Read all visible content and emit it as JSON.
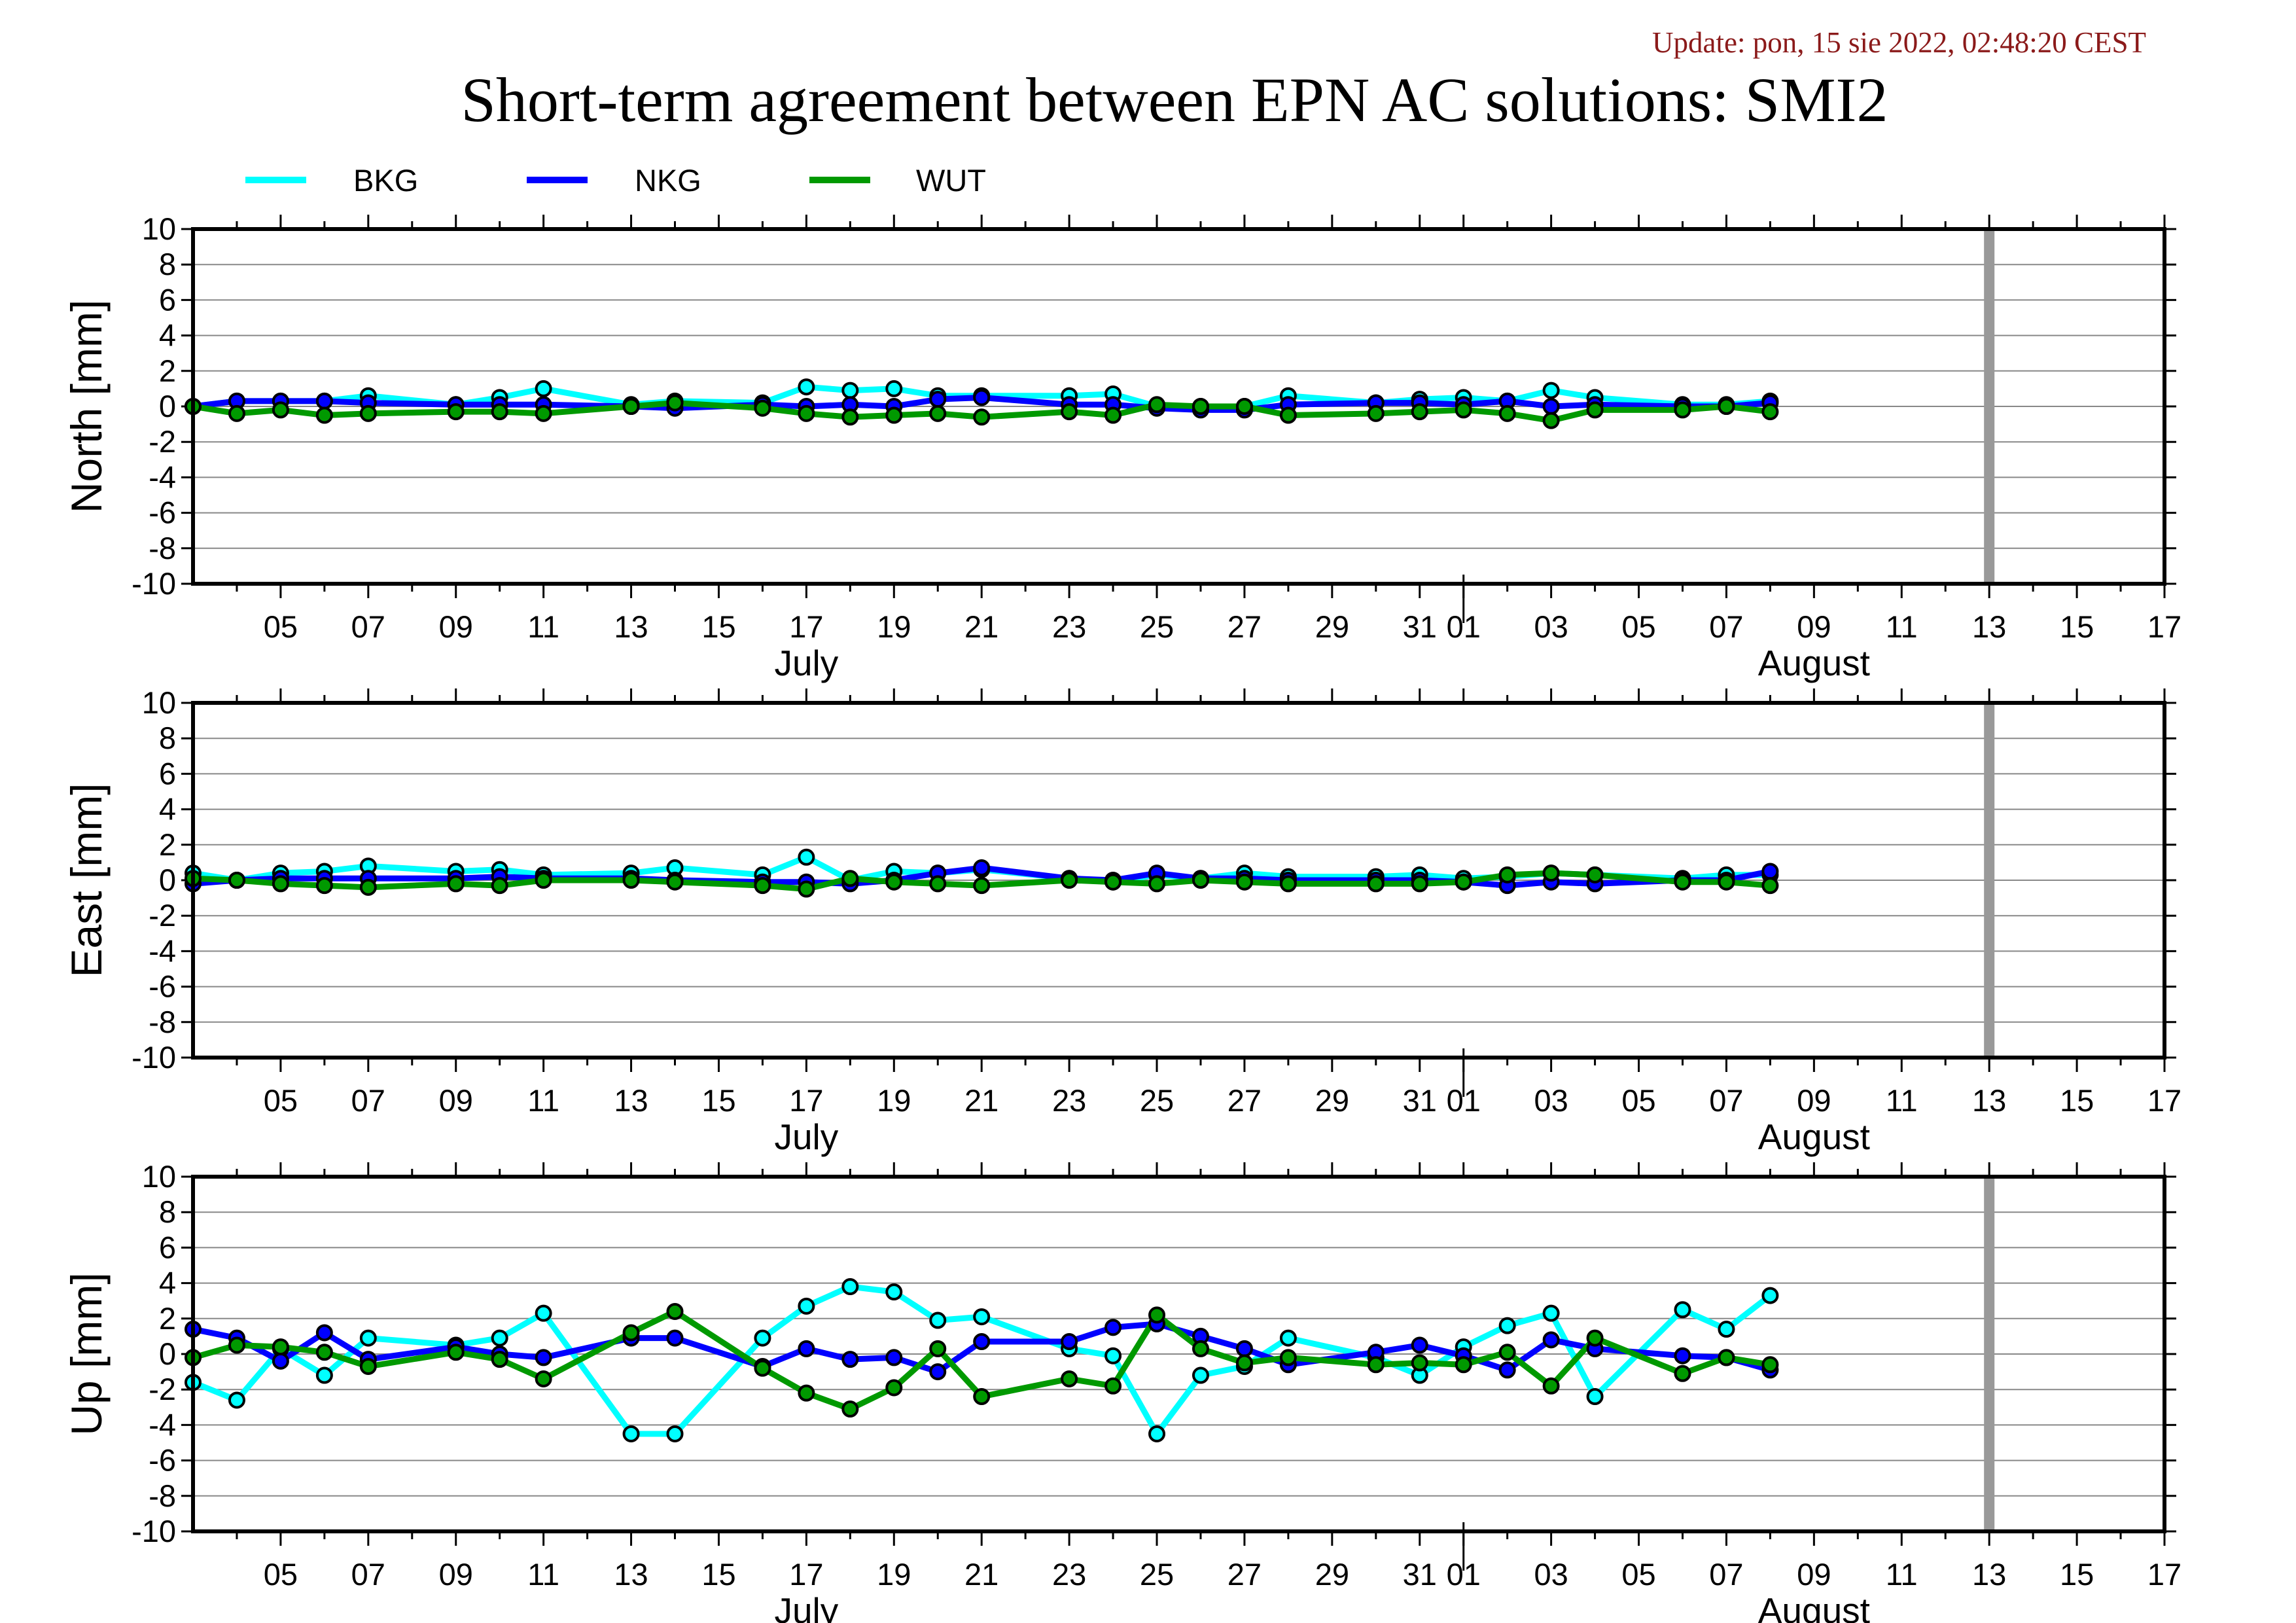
{
  "update_text": "Update: pon, 15 sie 2022, 02:48:20 CEST",
  "title": "Short-term agreement between EPN AC solutions: SMI2",
  "legend": [
    {
      "name": "BKG",
      "color": "#00ffff"
    },
    {
      "name": "NKG",
      "color": "#0000ff"
    },
    {
      "name": "WUT",
      "color": "#009900"
    }
  ],
  "colors": {
    "grid": "#888888",
    "frame": "#000000",
    "marker_edge": "#000000",
    "today_marker": "#999999"
  },
  "chart_data": [
    {
      "type": "line",
      "ylabel": "North [mm]",
      "ylim": [
        -10,
        10
      ],
      "yticks": [
        -10,
        -8,
        -6,
        -4,
        -2,
        0,
        2,
        4,
        6,
        8,
        10
      ],
      "xlim": [
        "2022-07-03",
        "2022-08-17"
      ],
      "xtick_labels": [
        "05",
        "07",
        "09",
        "11",
        "13",
        "15",
        "17",
        "19",
        "21",
        "23",
        "25",
        "27",
        "29",
        "31",
        "01",
        "03",
        "05",
        "07",
        "09",
        "11",
        "13",
        "15",
        "17"
      ],
      "month_labels": [
        "July",
        "August"
      ],
      "today_marker": "2022-08-13",
      "grid": "horizontal",
      "series": [
        {
          "name": "BKG",
          "x": [
            "2022-07-03",
            "2022-07-04",
            "2022-07-05",
            "2022-07-06",
            "2022-07-07",
            "2022-07-09",
            "2022-07-10",
            "2022-07-11",
            "2022-07-13",
            "2022-07-14",
            "2022-07-16",
            "2022-07-17",
            "2022-07-18",
            "2022-07-19",
            "2022-07-20",
            "2022-07-21",
            "2022-07-23",
            "2022-07-24",
            "2022-07-25",
            "2022-07-26",
            "2022-07-27",
            "2022-07-28",
            "2022-07-30",
            "2022-07-31",
            "2022-08-01",
            "2022-08-02",
            "2022-08-03",
            "2022-08-04",
            "2022-08-06",
            "2022-08-07",
            "2022-08-08"
          ],
          "y": [
            0.0,
            0.3,
            0.3,
            0.3,
            0.6,
            0.1,
            0.5,
            1.0,
            0.1,
            0.3,
            0.2,
            1.1,
            0.9,
            1.0,
            0.6,
            0.6,
            0.6,
            0.7,
            0.0,
            0.0,
            0.0,
            0.6,
            0.2,
            0.4,
            0.5,
            0.3,
            0.9,
            0.5,
            0.1,
            0.1,
            0.3
          ]
        },
        {
          "name": "NKG",
          "x": [
            "2022-07-03",
            "2022-07-04",
            "2022-07-05",
            "2022-07-06",
            "2022-07-07",
            "2022-07-09",
            "2022-07-10",
            "2022-07-11",
            "2022-07-13",
            "2022-07-14",
            "2022-07-16",
            "2022-07-17",
            "2022-07-18",
            "2022-07-19",
            "2022-07-20",
            "2022-07-21",
            "2022-07-23",
            "2022-07-24",
            "2022-07-25",
            "2022-07-26",
            "2022-07-27",
            "2022-07-28",
            "2022-07-30",
            "2022-07-31",
            "2022-08-01",
            "2022-08-02",
            "2022-08-03",
            "2022-08-04",
            "2022-08-06",
            "2022-08-07",
            "2022-08-08"
          ],
          "y": [
            0.0,
            0.3,
            0.3,
            0.3,
            0.2,
            0.1,
            0.1,
            0.1,
            0.0,
            -0.1,
            0.1,
            0.0,
            0.1,
            0.0,
            0.4,
            0.5,
            0.1,
            0.1,
            -0.1,
            -0.2,
            -0.2,
            0.1,
            0.2,
            0.2,
            0.1,
            0.3,
            0.0,
            0.1,
            0.0,
            0.0,
            0.2
          ]
        },
        {
          "name": "WUT",
          "x": [
            "2022-07-03",
            "2022-07-04",
            "2022-07-05",
            "2022-07-06",
            "2022-07-07",
            "2022-07-09",
            "2022-07-10",
            "2022-07-11",
            "2022-07-13",
            "2022-07-14",
            "2022-07-16",
            "2022-07-17",
            "2022-07-18",
            "2022-07-19",
            "2022-07-20",
            "2022-07-21",
            "2022-07-23",
            "2022-07-24",
            "2022-07-25",
            "2022-07-26",
            "2022-07-27",
            "2022-07-28",
            "2022-07-30",
            "2022-07-31",
            "2022-08-01",
            "2022-08-02",
            "2022-08-03",
            "2022-08-04",
            "2022-08-06",
            "2022-08-07",
            "2022-08-08"
          ],
          "y": [
            0.0,
            -0.4,
            -0.2,
            -0.5,
            -0.4,
            -0.3,
            -0.3,
            -0.4,
            0.0,
            0.2,
            -0.1,
            -0.4,
            -0.6,
            -0.5,
            -0.4,
            -0.6,
            -0.3,
            -0.5,
            0.1,
            0.0,
            0.0,
            -0.5,
            -0.4,
            -0.3,
            -0.2,
            -0.4,
            -0.8,
            -0.2,
            -0.2,
            0.0,
            -0.3
          ]
        }
      ]
    },
    {
      "type": "line",
      "ylabel": "East [mm]",
      "ylim": [
        -10,
        10
      ],
      "yticks": [
        -10,
        -8,
        -6,
        -4,
        -2,
        0,
        2,
        4,
        6,
        8,
        10
      ],
      "xlim": [
        "2022-07-03",
        "2022-08-17"
      ],
      "xtick_labels": [
        "05",
        "07",
        "09",
        "11",
        "13",
        "15",
        "17",
        "19",
        "21",
        "23",
        "25",
        "27",
        "29",
        "31",
        "01",
        "03",
        "05",
        "07",
        "09",
        "11",
        "13",
        "15",
        "17"
      ],
      "month_labels": [
        "July",
        "August"
      ],
      "today_marker": "2022-08-13",
      "grid": "horizontal",
      "series": [
        {
          "name": "BKG",
          "x": [
            "2022-07-03",
            "2022-07-04",
            "2022-07-05",
            "2022-07-06",
            "2022-07-07",
            "2022-07-09",
            "2022-07-10",
            "2022-07-11",
            "2022-07-13",
            "2022-07-14",
            "2022-07-16",
            "2022-07-17",
            "2022-07-18",
            "2022-07-19",
            "2022-07-20",
            "2022-07-21",
            "2022-07-23",
            "2022-07-24",
            "2022-07-25",
            "2022-07-26",
            "2022-07-27",
            "2022-07-28",
            "2022-07-30",
            "2022-07-31",
            "2022-08-01",
            "2022-08-02",
            "2022-08-03",
            "2022-08-04",
            "2022-08-06",
            "2022-08-07",
            "2022-08-08"
          ],
          "y": [
            0.4,
            0.0,
            0.4,
            0.5,
            0.8,
            0.5,
            0.6,
            0.3,
            0.4,
            0.7,
            0.3,
            1.3,
            0.0,
            0.5,
            0.4,
            0.6,
            0.1,
            -0.1,
            0.3,
            0.1,
            0.4,
            0.2,
            0.2,
            0.3,
            0.1,
            0.2,
            0.4,
            0.3,
            0.1,
            0.3,
            0.3
          ]
        },
        {
          "name": "NKG",
          "x": [
            "2022-07-03",
            "2022-07-04",
            "2022-07-05",
            "2022-07-06",
            "2022-07-07",
            "2022-07-09",
            "2022-07-10",
            "2022-07-11",
            "2022-07-13",
            "2022-07-14",
            "2022-07-16",
            "2022-07-17",
            "2022-07-18",
            "2022-07-19",
            "2022-07-20",
            "2022-07-21",
            "2022-07-23",
            "2022-07-24",
            "2022-07-25",
            "2022-07-26",
            "2022-07-27",
            "2022-07-28",
            "2022-07-30",
            "2022-07-31",
            "2022-08-01",
            "2022-08-02",
            "2022-08-03",
            "2022-08-04",
            "2022-08-06",
            "2022-08-07",
            "2022-08-08"
          ],
          "y": [
            -0.2,
            0.0,
            0.1,
            0.1,
            0.1,
            0.1,
            0.2,
            0.1,
            0.1,
            0.0,
            -0.1,
            -0.1,
            -0.2,
            0.0,
            0.4,
            0.7,
            0.1,
            0.0,
            0.4,
            0.1,
            0.1,
            0.0,
            0.0,
            0.0,
            -0.1,
            -0.3,
            -0.1,
            -0.2,
            0.0,
            0.0,
            0.5
          ]
        },
        {
          "name": "WUT",
          "x": [
            "2022-07-03",
            "2022-07-04",
            "2022-07-05",
            "2022-07-06",
            "2022-07-07",
            "2022-07-09",
            "2022-07-10",
            "2022-07-11",
            "2022-07-13",
            "2022-07-14",
            "2022-07-16",
            "2022-07-17",
            "2022-07-18",
            "2022-07-19",
            "2022-07-20",
            "2022-07-21",
            "2022-07-23",
            "2022-07-24",
            "2022-07-25",
            "2022-07-26",
            "2022-07-27",
            "2022-07-28",
            "2022-07-30",
            "2022-07-31",
            "2022-08-01",
            "2022-08-02",
            "2022-08-03",
            "2022-08-04",
            "2022-08-06",
            "2022-08-07",
            "2022-08-08"
          ],
          "y": [
            0.1,
            0.0,
            -0.2,
            -0.3,
            -0.4,
            -0.2,
            -0.3,
            0.0,
            0.0,
            -0.1,
            -0.3,
            -0.5,
            0.1,
            -0.1,
            -0.2,
            -0.3,
            0.0,
            -0.1,
            -0.2,
            0.0,
            -0.1,
            -0.2,
            -0.2,
            -0.2,
            -0.1,
            0.3,
            0.4,
            0.3,
            -0.1,
            -0.1,
            -0.3
          ]
        }
      ]
    },
    {
      "type": "line",
      "ylabel": "Up [mm]",
      "ylim": [
        -10,
        10
      ],
      "yticks": [
        -10,
        -8,
        -6,
        -4,
        -2,
        0,
        2,
        4,
        6,
        8,
        10
      ],
      "xlim": [
        "2022-07-03",
        "2022-08-17"
      ],
      "xtick_labels": [
        "05",
        "07",
        "09",
        "11",
        "13",
        "15",
        "17",
        "19",
        "21",
        "23",
        "25",
        "27",
        "29",
        "31",
        "01",
        "03",
        "05",
        "07",
        "09",
        "11",
        "13",
        "15",
        "17"
      ],
      "month_labels": [
        "July",
        "August"
      ],
      "today_marker": "2022-08-13",
      "grid": "horizontal",
      "series": [
        {
          "name": "BKG",
          "x": [
            "2022-07-03",
            "2022-07-04",
            "2022-07-05",
            "2022-07-06",
            "2022-07-07",
            "2022-07-09",
            "2022-07-10",
            "2022-07-11",
            "2022-07-13",
            "2022-07-14",
            "2022-07-16",
            "2022-07-17",
            "2022-07-18",
            "2022-07-19",
            "2022-07-20",
            "2022-07-21",
            "2022-07-23",
            "2022-07-24",
            "2022-07-25",
            "2022-07-26",
            "2022-07-27",
            "2022-07-28",
            "2022-07-30",
            "2022-07-31",
            "2022-08-01",
            "2022-08-02",
            "2022-08-03",
            "2022-08-04",
            "2022-08-06",
            "2022-08-07",
            "2022-08-08"
          ],
          "y": [
            -1.6,
            -2.6,
            0.3,
            -1.2,
            0.9,
            0.5,
            0.9,
            2.3,
            -4.5,
            -4.5,
            0.9,
            2.7,
            3.8,
            3.5,
            1.9,
            2.1,
            0.3,
            -0.1,
            -4.5,
            -1.2,
            -0.7,
            0.9,
            -0.2,
            -1.2,
            0.4,
            1.6,
            2.3,
            -2.4,
            2.5,
            1.4,
            3.3
          ]
        },
        {
          "name": "NKG",
          "x": [
            "2022-07-03",
            "2022-07-04",
            "2022-07-05",
            "2022-07-06",
            "2022-07-07",
            "2022-07-09",
            "2022-07-10",
            "2022-07-11",
            "2022-07-13",
            "2022-07-14",
            "2022-07-16",
            "2022-07-17",
            "2022-07-18",
            "2022-07-19",
            "2022-07-20",
            "2022-07-21",
            "2022-07-23",
            "2022-07-24",
            "2022-07-25",
            "2022-07-26",
            "2022-07-27",
            "2022-07-28",
            "2022-07-30",
            "2022-07-31",
            "2022-08-01",
            "2022-08-02",
            "2022-08-03",
            "2022-08-04",
            "2022-08-06",
            "2022-08-07",
            "2022-08-08"
          ],
          "y": [
            1.4,
            0.9,
            -0.4,
            1.2,
            -0.3,
            0.4,
            0.0,
            -0.2,
            0.9,
            0.9,
            -0.7,
            0.3,
            -0.3,
            -0.2,
            -1.0,
            0.7,
            0.7,
            1.5,
            1.7,
            1.0,
            0.3,
            -0.6,
            0.1,
            0.5,
            -0.1,
            -0.9,
            0.8,
            0.3,
            -0.1,
            -0.2,
            -0.9
          ]
        },
        {
          "name": "WUT",
          "x": [
            "2022-07-03",
            "2022-07-04",
            "2022-07-05",
            "2022-07-06",
            "2022-07-07",
            "2022-07-09",
            "2022-07-10",
            "2022-07-11",
            "2022-07-13",
            "2022-07-14",
            "2022-07-16",
            "2022-07-17",
            "2022-07-18",
            "2022-07-19",
            "2022-07-20",
            "2022-07-21",
            "2022-07-23",
            "2022-07-24",
            "2022-07-25",
            "2022-07-26",
            "2022-07-27",
            "2022-07-28",
            "2022-07-30",
            "2022-07-31",
            "2022-08-01",
            "2022-08-02",
            "2022-08-03",
            "2022-08-04",
            "2022-08-06",
            "2022-08-07",
            "2022-08-08"
          ],
          "y": [
            -0.2,
            0.5,
            0.4,
            0.1,
            -0.7,
            0.1,
            -0.3,
            -1.4,
            1.2,
            2.4,
            -0.8,
            -2.2,
            -3.1,
            -1.9,
            0.3,
            -2.4,
            -1.4,
            -1.8,
            2.2,
            0.3,
            -0.5,
            -0.2,
            -0.6,
            -0.5,
            -0.6,
            0.1,
            -1.8,
            0.9,
            -1.1,
            -0.2,
            -0.6
          ]
        }
      ]
    }
  ]
}
